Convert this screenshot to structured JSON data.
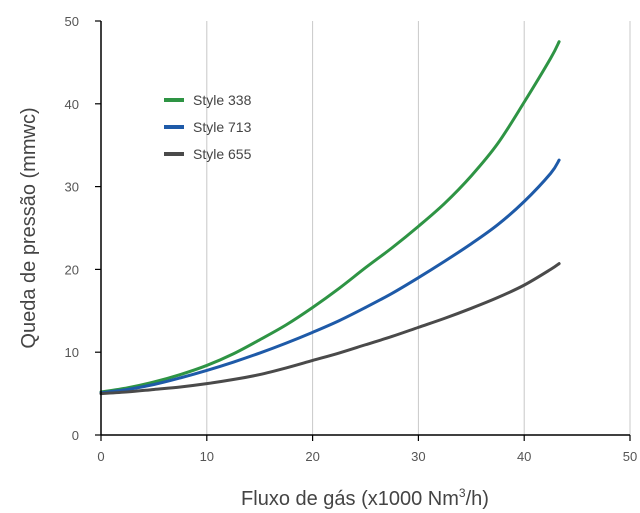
{
  "chart_data": {
    "type": "line",
    "title": "",
    "xlabel_main": "Fluxo de gás (x1000 Nm",
    "xlabel_sup": "3",
    "xlabel_end": "/h)",
    "ylabel": "Queda de pressão (mmwc)",
    "xlim": [
      0,
      50
    ],
    "ylim": [
      0,
      50
    ],
    "x_ticks": [
      "0",
      "10",
      "20",
      "30",
      "40",
      "50"
    ],
    "y_ticks": [
      "0",
      "10",
      "20",
      "30",
      "40",
      "50"
    ],
    "grid": "vertical",
    "legend_position": "upper-left",
    "series": [
      {
        "name": "Style 338",
        "color": "#2e9444",
        "x": [
          0,
          2.5,
          5,
          7.5,
          10,
          12.5,
          15,
          17.5,
          20,
          22.5,
          25,
          27.5,
          30,
          32.5,
          35,
          37.5,
          40,
          42.5,
          43.3
        ],
        "y": [
          5.2,
          5.7,
          6.4,
          7.3,
          8.4,
          9.8,
          11.5,
          13.3,
          15.4,
          17.7,
          20.2,
          22.6,
          25.2,
          28.0,
          31.3,
          35.2,
          40.2,
          45.5,
          47.5
        ]
      },
      {
        "name": "Style 713",
        "color": "#1e5aa8",
        "x": [
          0,
          2.5,
          5,
          7.5,
          10,
          12.5,
          15,
          17.5,
          20,
          22.5,
          25,
          27.5,
          30,
          32.5,
          35,
          37.5,
          40,
          42.5,
          43.3
        ],
        "y": [
          5.1,
          5.5,
          6.1,
          6.9,
          7.8,
          8.8,
          9.9,
          11.1,
          12.4,
          13.8,
          15.4,
          17.1,
          19.0,
          21.0,
          23.1,
          25.4,
          28.2,
          31.6,
          33.2
        ]
      },
      {
        "name": "Style 655",
        "color": "#4a4a4a",
        "x": [
          0,
          2.5,
          5,
          7.5,
          10,
          12.5,
          15,
          17.5,
          20,
          22.5,
          25,
          27.5,
          30,
          32.5,
          35,
          37.5,
          40,
          42.5,
          43.3
        ],
        "y": [
          5.0,
          5.2,
          5.5,
          5.8,
          6.2,
          6.7,
          7.3,
          8.1,
          9.0,
          9.9,
          10.9,
          11.9,
          13.0,
          14.1,
          15.3,
          16.6,
          18.1,
          20.0,
          20.7
        ]
      }
    ]
  }
}
